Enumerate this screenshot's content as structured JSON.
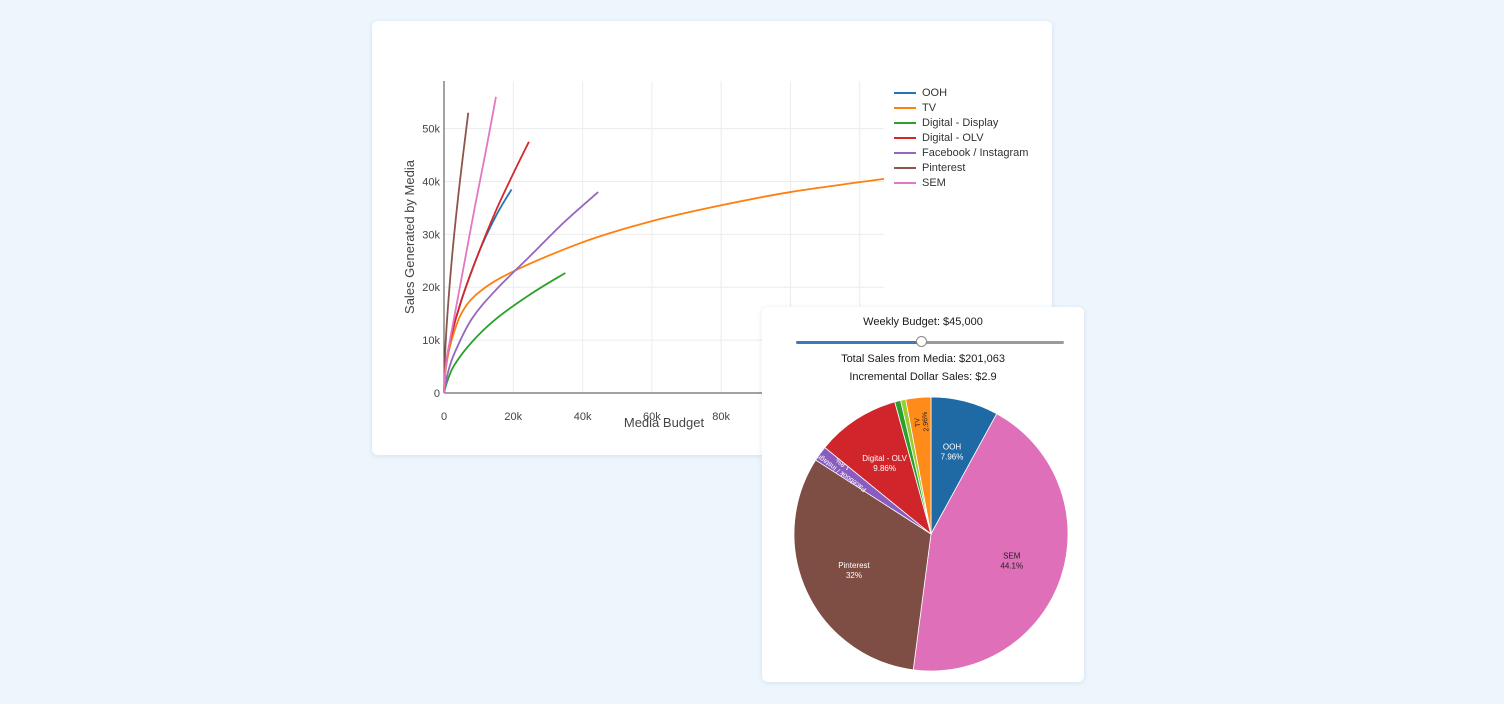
{
  "chart_data": [
    {
      "type": "line",
      "xlabel": "Media Budget",
      "ylabel": "Sales Generated by Media",
      "xlim": [
        0,
        127000
      ],
      "ylim": [
        0,
        59000
      ],
      "xticks": [
        0,
        20000,
        40000,
        60000,
        80000
      ],
      "xtick_labels": [
        "0",
        "20k",
        "40k",
        "60k",
        "80k"
      ],
      "yticks": [
        0,
        10000,
        20000,
        30000,
        40000,
        50000
      ],
      "ytick_labels": [
        "0",
        "10k",
        "20k",
        "30k",
        "40k",
        "50k"
      ],
      "grid": true,
      "legend_position": "right",
      "series": [
        {
          "name": "OOH",
          "color": "#1f77b4",
          "x": [
            0,
            500,
            2000,
            5000,
            10000,
            15000,
            19500
          ],
          "y": [
            0,
            5000,
            10500,
            17500,
            26500,
            33500,
            38500
          ]
        },
        {
          "name": "TV",
          "color": "#ff7f0e",
          "x": [
            0,
            500,
            2000,
            5000,
            10000,
            20000,
            40000,
            60000,
            80000,
            100000,
            127000
          ],
          "y": [
            0,
            4500,
            9500,
            15000,
            19000,
            23000,
            28500,
            32500,
            35500,
            38000,
            40500
          ]
        },
        {
          "name": "Digital - Display",
          "color": "#2ca02c",
          "x": [
            0,
            1000,
            3000,
            8000,
            15000,
            25000,
            35000
          ],
          "y": [
            0,
            2300,
            5300,
            9600,
            14000,
            18700,
            22700
          ]
        },
        {
          "name": "Digital - OLV",
          "color": "#d62728",
          "x": [
            0,
            500,
            2000,
            5000,
            10000,
            15000,
            20000,
            24500
          ],
          "y": [
            0,
            5000,
            10500,
            17500,
            26500,
            34500,
            41500,
            47500
          ]
        },
        {
          "name": "Facebook / Instagram",
          "color": "#9467bd",
          "x": [
            0,
            1000,
            3000,
            8000,
            15000,
            25000,
            35000,
            44500
          ],
          "y": [
            0,
            3500,
            7500,
            14000,
            19500,
            26000,
            32500,
            38000
          ]
        },
        {
          "name": "Pinterest",
          "color": "#8c564b",
          "x": [
            0,
            300,
            1000,
            2500,
            4500,
            7000
          ],
          "y": [
            0,
            7000,
            15000,
            27000,
            39500,
            53000
          ]
        },
        {
          "name": "SEM",
          "color": "#e377c2",
          "x": [
            0,
            500,
            2000,
            5000,
            9000,
            12000,
            15000
          ],
          "y": [
            0,
            5000,
            11000,
            21500,
            35500,
            45500,
            56000
          ]
        }
      ]
    },
    {
      "type": "pie",
      "slices": [
        {
          "label": "OOH",
          "value": 7.96,
          "text": "7.96%",
          "color": "#1f6aa5"
        },
        {
          "label": "SEM",
          "value": 44.1,
          "text": "44.1%",
          "color": "#de6fb8"
        },
        {
          "label": "Pinterest",
          "value": 32,
          "text": "32%",
          "color": "#7e4d43"
        },
        {
          "label": "Facebook / Instagram",
          "value": 1.8,
          "text": "1.8%",
          "color": "#8a5cc0"
        },
        {
          "label": "Digital - OLV",
          "value": 9.86,
          "text": "9.86%",
          "color": "#d0262b"
        },
        {
          "label": "Digital - Display",
          "value": 0.7,
          "text": "",
          "color": "#2ca02c"
        },
        {
          "label": "",
          "value": 0.6,
          "text": "",
          "color": "#9acd32"
        },
        {
          "label": "TV",
          "value": 2.96,
          "text": "2.96%",
          "color": "#ff8c1a"
        }
      ]
    }
  ],
  "budget_panel": {
    "budget_label": "Weekly Budget: $45,000",
    "slider_fraction": 0.47,
    "total_sales": "Total Sales from Media: $201,063",
    "incremental_sales": "Incremental Dollar Sales: $2.9"
  }
}
